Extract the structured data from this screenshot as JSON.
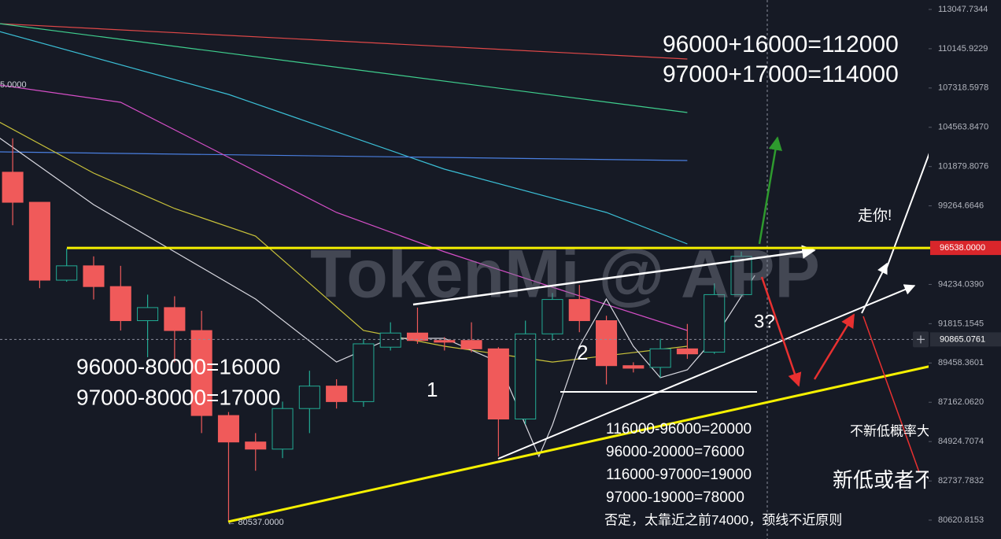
{
  "chart_data": {
    "type": "candlestick",
    "watermark": "TokenMi @ APP",
    "log_scale": true,
    "xlim": [
      -0.47,
      33.94
    ],
    "ylim": [
      79619,
      113756
    ],
    "yticks": [
      113047.7344,
      110145.9229,
      107318.5978,
      {
        "value": 104563.847,
        "label": "104563.8470"
      },
      101879.8076,
      99264.6646,
      {
        "value": 94234.039,
        "label": "94234.0390"
      },
      91815.1545,
      89458.3601,
      {
        "value": 87162.062,
        "label": "87162.0620"
      },
      84924.7074,
      82737.7832,
      80620.8153
    ],
    "up_color": "#22ab94",
    "down_color": "#f05a5a",
    "open": [
      101500,
      99500,
      94500,
      95400,
      94100,
      92000,
      92800,
      91400,
      86400,
      84900,
      84500,
      86800,
      88100,
      87200,
      90400,
      91250,
      90800,
      90800,
      90300,
      86200,
      91200,
      93300,
      92000,
      89300,
      89200,
      90300,
      90100,
      93600
    ],
    "high": [
      103800,
      99500,
      96500,
      96000,
      95400,
      93600,
      93500,
      92600,
      86600,
      85400,
      87200,
      89000,
      88500,
      90900,
      91900,
      92800,
      91000,
      91900,
      90400,
      92000,
      93700,
      94200,
      92300,
      89500,
      90900,
      91800,
      94300,
      96300
    ],
    "low": [
      98000,
      94000,
      94400,
      93300,
      91400,
      89800,
      89500,
      85400,
      80537,
      83300,
      84000,
      85400,
      86800,
      86900,
      90200,
      90600,
      90200,
      90100,
      84100,
      85900,
      90800,
      91300,
      88200,
      88900,
      88600,
      89700,
      90000,
      93500
    ],
    "close": [
      99500,
      94500,
      95400,
      94100,
      92000,
      92800,
      91400,
      86400,
      84900,
      84500,
      86800,
      88100,
      87200,
      90600,
      91250,
      90800,
      90700,
      90300,
      86200,
      91200,
      93300,
      92000,
      89300,
      89150,
      90300,
      90000,
      93600,
      96000
    ],
    "moving_averages": [
      {
        "color": "#e04848",
        "x": [
          -0.5,
          25
        ],
        "values": [
          111992,
          109397
        ]
      },
      {
        "color": "#3fcf8e",
        "x": [
          -0.5,
          25
        ],
        "values": [
          111992,
          105590
        ]
      },
      {
        "color": "#3bbfd6",
        "x": [
          -0.5,
          8,
          16,
          22,
          25
        ],
        "values": [
          111410,
          106863,
          101703,
          98831,
          96793
        ]
      },
      {
        "color": "#4a7fe0",
        "x": [
          -0.5,
          25
        ],
        "values": [
          102875,
          102287
        ]
      },
      {
        "color": "#d64fc8",
        "x": [
          -0.5,
          4,
          8,
          12,
          16,
          20,
          25
        ],
        "values": [
          107534,
          106307,
          102500,
          98831,
          96289,
          94059,
          91402
        ]
      },
      {
        "color": "#c9c23a",
        "x": [
          -0.5,
          3,
          6,
          9,
          13,
          16,
          20,
          25
        ],
        "values": [
          104932,
          101437,
          99087,
          97298,
          91402,
          90455,
          89516,
          90455
        ]
      },
      {
        "color": "#d8d8e0",
        "x": [
          -0.5,
          3,
          6,
          9,
          12,
          14,
          16,
          18,
          19,
          19.5,
          20,
          21,
          22,
          23,
          24,
          25,
          26,
          27.5
        ],
        "values": [
          103845,
          99345,
          96289,
          93326,
          89516,
          90927,
          90927,
          89516,
          85862,
          84093,
          85862,
          90455,
          93326,
          90455,
          88590,
          89053,
          90927,
          94797
        ]
      }
    ],
    "price_line": {
      "value": 96538,
      "label": "96538.0000",
      "color": "#f5f000"
    },
    "crosshair": {
      "value": 90865.0761,
      "label": "90865.0761"
    },
    "low_label": "← 80537.0000",
    "edge_label": "5.0000",
    "annotations": [
      "96000+16000=112000",
      "97000+17000=114000",
      "走你!",
      "3?",
      "2",
      "1",
      "96000-80000=16000",
      "97000-80000=17000",
      "116000-96000=20000",
      "96000-20000=76000",
      "116000-97000=19000",
      "97000-19000=78000",
      "否定，太靠近之前74000，颈线不近原则",
      "不新低概率大",
      "新低或者不低"
    ]
  }
}
